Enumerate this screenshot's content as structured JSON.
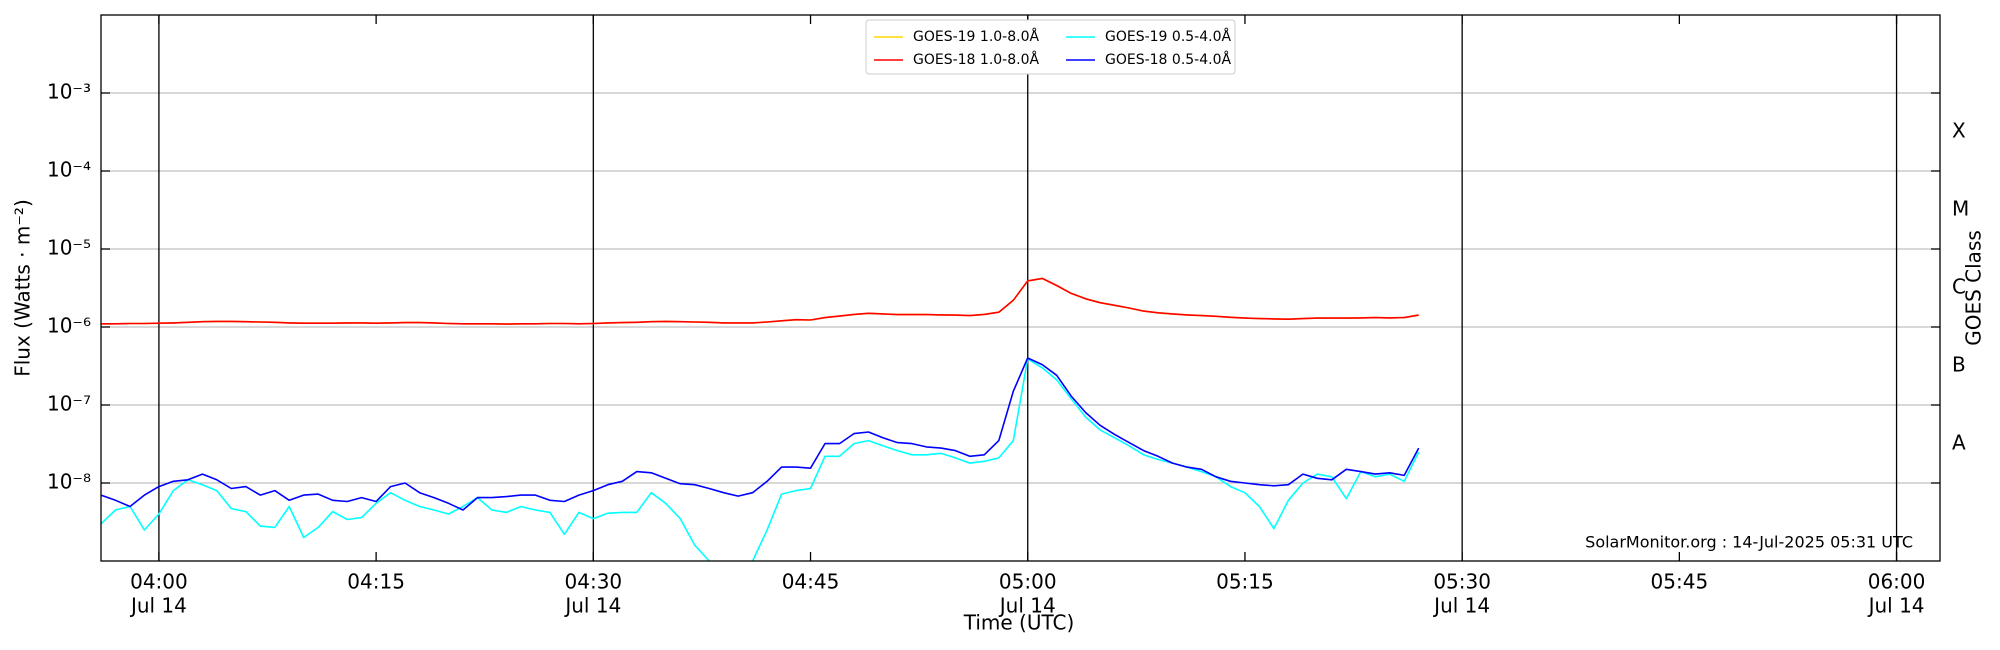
{
  "chart_data": {
    "type": "line",
    "x_label": "Time (UTC)",
    "y_label": "Flux (Watts · m⁻²)",
    "y2_label": "GOES Class",
    "annotation": "SolarMonitor.org : 14-Jul-2025 05:31 UTC",
    "log_y": true,
    "grid": true,
    "legend": "upper center",
    "xlim": [
      "03:56",
      "06:03"
    ],
    "xticks": [
      {
        "value": "04:00",
        "label": [
          "04:00",
          "Jul 14"
        ]
      },
      {
        "value": "04:15",
        "label": [
          "04:15"
        ]
      },
      {
        "value": "04:30",
        "label": [
          "04:30",
          "Jul 14"
        ]
      },
      {
        "value": "04:45",
        "label": [
          "04:45"
        ]
      },
      {
        "value": "05:00",
        "label": [
          "05:00",
          "Jul 14"
        ]
      },
      {
        "value": "05:15",
        "label": [
          "05:15"
        ]
      },
      {
        "value": "05:30",
        "label": [
          "05:30",
          "Jul 14"
        ]
      },
      {
        "value": "05:45",
        "label": [
          "05:45"
        ]
      },
      {
        "value": "06:00",
        "label": [
          "06:00",
          "Jul 14"
        ]
      }
    ],
    "ylim": [
      1e-09,
      0.01
    ],
    "yticks": [
      {
        "value": 0.001,
        "label": "10⁻³"
      },
      {
        "value": 0.0001,
        "label": "10⁻⁴"
      },
      {
        "value": 1e-05,
        "label": "10⁻⁵"
      },
      {
        "value": 1e-06,
        "label": "10⁻⁶"
      },
      {
        "value": 1e-07,
        "label": "10⁻⁷"
      },
      {
        "value": 1e-08,
        "label": "10⁻⁸"
      }
    ],
    "y2lim": [
      1e-09,
      0.01
    ],
    "y2ticks": [
      {
        "value": 0.000316,
        "label": "X"
      },
      {
        "value": 3.16e-05,
        "label": "M"
      },
      {
        "value": 3.16e-06,
        "label": "C"
      },
      {
        "value": 3.16e-07,
        "label": "B"
      },
      {
        "value": 3.16e-08,
        "label": "A"
      }
    ],
    "x": [
      "03:56",
      "03:57",
      "03:58",
      "03:59",
      "04:00",
      "04:01",
      "04:02",
      "04:03",
      "04:04",
      "04:05",
      "04:06",
      "04:07",
      "04:08",
      "04:09",
      "04:10",
      "04:11",
      "04:12",
      "04:13",
      "04:14",
      "04:15",
      "04:16",
      "04:17",
      "04:18",
      "04:19",
      "04:20",
      "04:21",
      "04:22",
      "04:23",
      "04:24",
      "04:25",
      "04:26",
      "04:27",
      "04:28",
      "04:29",
      "04:30",
      "04:31",
      "04:32",
      "04:33",
      "04:34",
      "04:35",
      "04:36",
      "04:37",
      "04:38",
      "04:39",
      "04:40",
      "04:41",
      "04:42",
      "04:43",
      "04:44",
      "04:45",
      "04:46",
      "04:47",
      "04:48",
      "04:49",
      "04:50",
      "04:51",
      "04:52",
      "04:53",
      "04:54",
      "04:55",
      "04:56",
      "04:57",
      "04:58",
      "04:59",
      "05:00",
      "05:01",
      "05:02",
      "05:03",
      "05:04",
      "05:05",
      "05:06",
      "05:07",
      "05:08",
      "05:09",
      "05:10",
      "05:11",
      "05:12",
      "05:13",
      "05:14",
      "05:15",
      "05:16",
      "05:17",
      "05:18",
      "05:19",
      "05:20",
      "05:21",
      "05:22",
      "05:23",
      "05:24",
      "05:25",
      "05:26",
      "05:27"
    ],
    "series": [
      {
        "name": "GOES-19 1.0-8.0Å",
        "color": "#ffd700",
        "values": [
          1.1e-06,
          1.1e-06,
          1.11e-06,
          1.11e-06,
          1.12e-06,
          1.13e-06,
          1.15e-06,
          1.17e-06,
          1.18e-06,
          1.18e-06,
          1.17e-06,
          1.16e-06,
          1.15e-06,
          1.13e-06,
          1.12e-06,
          1.12e-06,
          1.12e-06,
          1.13e-06,
          1.13e-06,
          1.12e-06,
          1.13e-06,
          1.14e-06,
          1.14e-06,
          1.13e-06,
          1.11e-06,
          1.1e-06,
          1.1e-06,
          1.1e-06,
          1.09e-06,
          1.1e-06,
          1.1e-06,
          1.11e-06,
          1.11e-06,
          1.1e-06,
          1.11e-06,
          1.13e-06,
          1.14e-06,
          1.15e-06,
          1.17e-06,
          1.18e-06,
          1.17e-06,
          1.16e-06,
          1.15e-06,
          1.13e-06,
          1.13e-06,
          1.13e-06,
          1.16e-06,
          1.2e-06,
          1.24e-06,
          1.23e-06,
          1.32e-06,
          1.38e-06,
          1.45e-06,
          1.5e-06,
          1.47e-06,
          1.44e-06,
          1.44e-06,
          1.44e-06,
          1.43e-06,
          1.42e-06,
          1.4e-06,
          1.45e-06,
          1.55e-06,
          2.2e-06,
          3.9e-06,
          4.2e-06,
          3.4e-06,
          2.7e-06,
          2.3e-06,
          2.05e-06,
          1.9e-06,
          1.75e-06,
          1.6e-06,
          1.52e-06,
          1.47e-06,
          1.43e-06,
          1.4e-06,
          1.37e-06,
          1.33e-06,
          1.3e-06,
          1.28e-06,
          1.27e-06,
          1.26e-06,
          1.28e-06,
          1.3e-06,
          1.3e-06,
          1.3e-06,
          1.31e-06,
          1.32e-06,
          1.31e-06,
          1.32e-06,
          1.42e-06
        ]
      },
      {
        "name": "GOES-18 1.0-8.0Å",
        "color": "#ff0000",
        "values": [
          1.1e-06,
          1.1e-06,
          1.11e-06,
          1.11e-06,
          1.12e-06,
          1.13e-06,
          1.15e-06,
          1.17e-06,
          1.18e-06,
          1.18e-06,
          1.17e-06,
          1.16e-06,
          1.15e-06,
          1.13e-06,
          1.12e-06,
          1.12e-06,
          1.12e-06,
          1.13e-06,
          1.13e-06,
          1.12e-06,
          1.13e-06,
          1.14e-06,
          1.14e-06,
          1.13e-06,
          1.11e-06,
          1.1e-06,
          1.1e-06,
          1.1e-06,
          1.09e-06,
          1.1e-06,
          1.1e-06,
          1.11e-06,
          1.11e-06,
          1.1e-06,
          1.11e-06,
          1.13e-06,
          1.14e-06,
          1.15e-06,
          1.17e-06,
          1.18e-06,
          1.17e-06,
          1.16e-06,
          1.15e-06,
          1.13e-06,
          1.13e-06,
          1.13e-06,
          1.16e-06,
          1.2e-06,
          1.24e-06,
          1.23e-06,
          1.32e-06,
          1.38e-06,
          1.45e-06,
          1.5e-06,
          1.47e-06,
          1.44e-06,
          1.44e-06,
          1.44e-06,
          1.43e-06,
          1.42e-06,
          1.4e-06,
          1.45e-06,
          1.55e-06,
          2.2e-06,
          3.9e-06,
          4.2e-06,
          3.4e-06,
          2.7e-06,
          2.3e-06,
          2.05e-06,
          1.9e-06,
          1.75e-06,
          1.6e-06,
          1.52e-06,
          1.47e-06,
          1.43e-06,
          1.4e-06,
          1.37e-06,
          1.33e-06,
          1.3e-06,
          1.28e-06,
          1.27e-06,
          1.26e-06,
          1.28e-06,
          1.3e-06,
          1.3e-06,
          1.3e-06,
          1.31e-06,
          1.32e-06,
          1.31e-06,
          1.32e-06,
          1.42e-06
        ]
      },
      {
        "name": "GOES-19 0.5-4.0Å",
        "color": "#00ffff",
        "values": [
          3e-09,
          4.5e-09,
          5e-09,
          2.5e-09,
          4e-09,
          8e-09,
          1.1e-08,
          9.5e-09,
          8e-09,
          4.7e-09,
          4.3e-09,
          2.8e-09,
          2.7e-09,
          5e-09,
          2e-09,
          2.7e-09,
          4.3e-09,
          3.4e-09,
          3.6e-09,
          5.5e-09,
          7.5e-09,
          6e-09,
          5e-09,
          4.5e-09,
          4e-09,
          5e-09,
          6.5e-09,
          4.5e-09,
          4.2e-09,
          5e-09,
          4.5e-09,
          4.2e-09,
          2.2e-09,
          4.2e-09,
          3.5e-09,
          4.1e-09,
          4.2e-09,
          4.2e-09,
          7.5e-09,
          5.5e-09,
          3.5e-09,
          1.6e-09,
          1e-09,
          9e-10,
          9e-10,
          1e-09,
          2.5e-09,
          7.2e-09,
          8e-09,
          8.5e-09,
          2.2e-08,
          2.2e-08,
          3.2e-08,
          3.5e-08,
          3e-08,
          2.6e-08,
          2.3e-08,
          2.3e-08,
          2.4e-08,
          2.1e-08,
          1.8e-08,
          1.9e-08,
          2.1e-08,
          3.5e-08,
          3.9e-07,
          3e-07,
          2.1e-07,
          1.2e-07,
          7e-08,
          4.8e-08,
          3.8e-08,
          3e-08,
          2.3e-08,
          2e-08,
          1.8e-08,
          1.6e-08,
          1.4e-08,
          1.2e-08,
          9e-09,
          7.5e-09,
          5e-09,
          2.6e-09,
          6e-09,
          1e-08,
          1.3e-08,
          1.2e-08,
          6.3e-09,
          1.4e-08,
          1.2e-08,
          1.3e-08,
          1.05e-08,
          2.5e-08
        ]
      },
      {
        "name": "GOES-18 0.5-4.0Å",
        "color": "#0000ff",
        "values": [
          7e-09,
          6e-09,
          5e-09,
          7e-09,
          9e-09,
          1.05e-08,
          1.1e-08,
          1.3e-08,
          1.1e-08,
          8.5e-09,
          9e-09,
          7e-09,
          8e-09,
          6e-09,
          7e-09,
          7.2e-09,
          6e-09,
          5.8e-09,
          6.5e-09,
          5.8e-09,
          9e-09,
          1e-08,
          7.5e-09,
          6.5e-09,
          5.5e-09,
          4.5e-09,
          6.5e-09,
          6.5e-09,
          6.7e-09,
          7e-09,
          7e-09,
          6e-09,
          5.8e-09,
          7e-09,
          8e-09,
          9.5e-09,
          1.05e-08,
          1.4e-08,
          1.35e-08,
          1.15e-08,
          9.8e-09,
          9.5e-09,
          8.5e-09,
          7.5e-09,
          6.8e-09,
          7.5e-09,
          1.05e-08,
          1.6e-08,
          1.6e-08,
          1.55e-08,
          3.2e-08,
          3.2e-08,
          4.3e-08,
          4.5e-08,
          3.8e-08,
          3.3e-08,
          3.2e-08,
          2.9e-08,
          2.8e-08,
          2.6e-08,
          2.2e-08,
          2.3e-08,
          3.5e-08,
          1.5e-07,
          4e-07,
          3.3e-07,
          2.4e-07,
          1.3e-07,
          8e-08,
          5.5e-08,
          4.2e-08,
          3.3e-08,
          2.6e-08,
          2.2e-08,
          1.8e-08,
          1.6e-08,
          1.5e-08,
          1.2e-08,
          1.05e-08,
          1e-08,
          9.5e-09,
          9.2e-09,
          9.5e-09,
          1.3e-08,
          1.15e-08,
          1.1e-08,
          1.5e-08,
          1.4e-08,
          1.3e-08,
          1.35e-08,
          1.25e-08,
          2.8e-08
        ]
      }
    ]
  }
}
